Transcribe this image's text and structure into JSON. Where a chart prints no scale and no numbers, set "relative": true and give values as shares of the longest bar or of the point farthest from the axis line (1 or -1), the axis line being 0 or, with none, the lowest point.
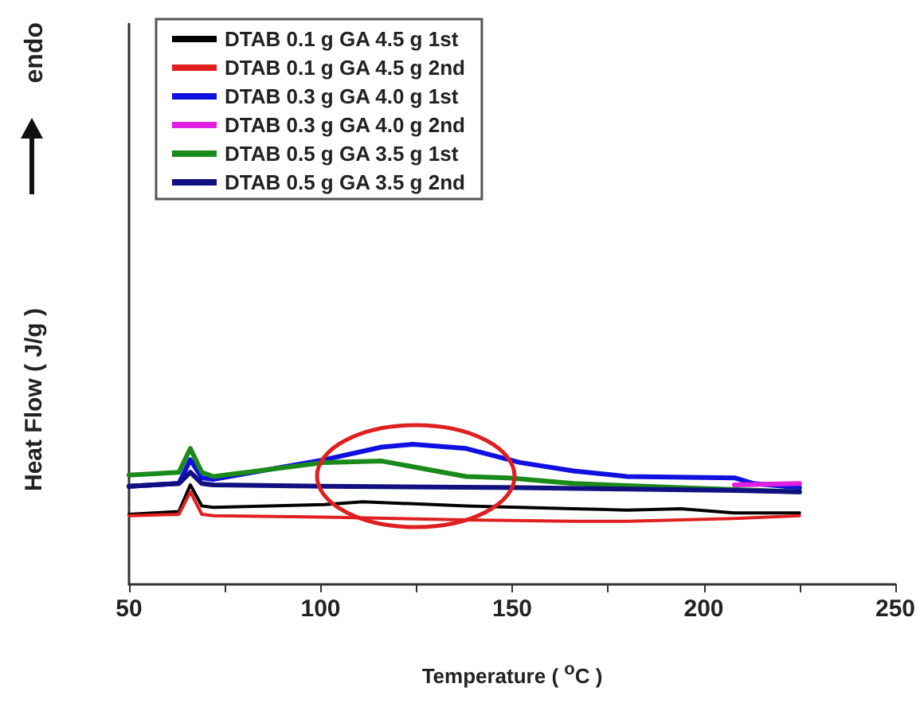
{
  "chart_data": {
    "type": "line",
    "relative": true,
    "xlabel": "Temperature ( $^{o}$C )",
    "ylabel": "Heat Flow ( J/g )",
    "annotations": [
      "endo"
    ],
    "xlim": [
      50,
      250
    ],
    "xticks": [
      50,
      {
        "value": 75,
        "label": null
      },
      100,
      {
        "value": 125,
        "label": null
      },
      150,
      {
        "value": 175,
        "label": null
      },
      200,
      {
        "value": 225,
        "label": null
      },
      250
    ],
    "tick_labels": "x",
    "grid": false,
    "legend": "top left",
    "marker": "none",
    "line_style": "solid",
    "series": [
      {
        "name": "DTAB 0.1 g GA 4.5 g 1st",
        "color": "#000000",
        "x": [
          50,
          63,
          66,
          69,
          72,
          101,
          111,
          138,
          166,
          180,
          194,
          208,
          225
        ],
        "values": [
          0.5,
          0.52,
          0.71,
          0.56,
          0.55,
          0.57,
          0.59,
          0.56,
          0.54,
          0.53,
          0.54,
          0.51,
          0.51
        ]
      },
      {
        "name": "DTAB 0.1 g GA 4.5 g 2nd",
        "color": "#e02020",
        "x": [
          50,
          63,
          66,
          69,
          72,
          101,
          138,
          166,
          180,
          208,
          225
        ],
        "values": [
          0.49,
          0.5,
          0.66,
          0.5,
          0.49,
          0.48,
          0.46,
          0.45,
          0.45,
          0.47,
          0.49
        ]
      },
      {
        "name": "DTAB 0.3 g GA 4.0 g 1st",
        "color": "#1010e0",
        "x": [
          50,
          63,
          66,
          69,
          72,
          101,
          116,
          124,
          138,
          152,
          166,
          180,
          208,
          213,
          225
        ],
        "values": [
          0.7,
          0.72,
          0.89,
          0.76,
          0.75,
          0.89,
          0.98,
          1,
          0.97,
          0.87,
          0.81,
          0.77,
          0.76,
          0.72,
          0.69
        ]
      },
      {
        "name": "DTAB 0.3 g GA 4.0 g 2nd",
        "color": "#e020e0",
        "x": [
          208,
          225
        ],
        "values": [
          0.71,
          0.72
        ]
      },
      {
        "name": "DTAB 0.5 g GA 3.5 g 1st",
        "color": "#1a8a1a",
        "x": [
          50,
          63,
          66,
          69,
          72,
          101,
          116,
          138,
          149,
          166,
          194,
          225
        ],
        "values": [
          0.78,
          0.8,
          0.97,
          0.8,
          0.77,
          0.87,
          0.88,
          0.77,
          0.76,
          0.72,
          0.69,
          0.66
        ]
      },
      {
        "name": "DTAB 0.5 g GA 3.5 g 2nd",
        "color": "#101080",
        "x": [
          50,
          63,
          66,
          69,
          72,
          101,
          152,
          180,
          208,
          225
        ],
        "values": [
          0.7,
          0.72,
          0.8,
          0.72,
          0.71,
          0.7,
          0.69,
          0.68,
          0.67,
          0.66
        ]
      }
    ]
  }
}
